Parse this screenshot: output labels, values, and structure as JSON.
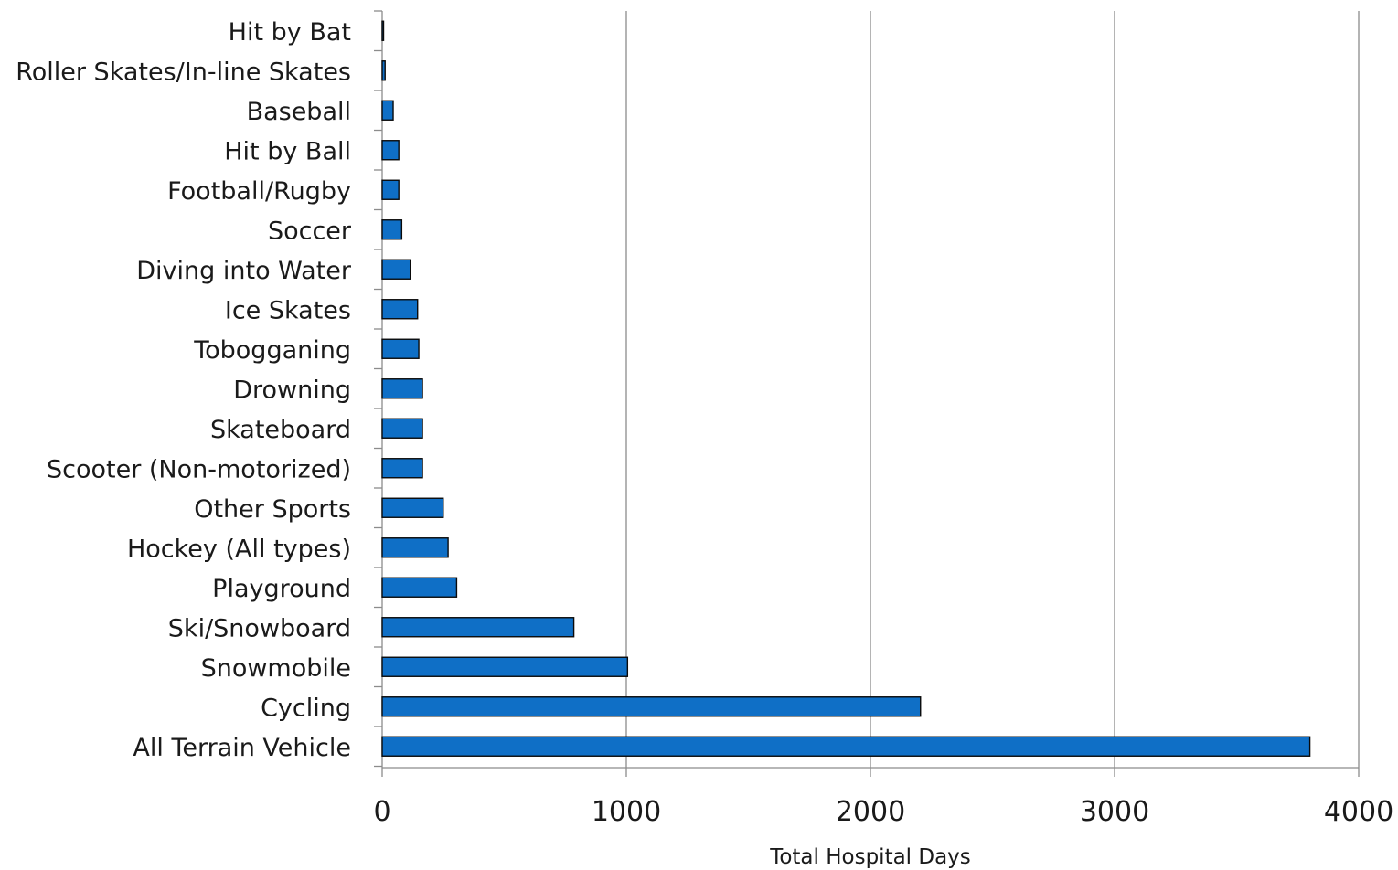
{
  "chart_data": {
    "type": "bar",
    "orientation": "horizontal",
    "categories": [
      "Hit by Bat",
      "Roller Skates/In-line Skates",
      "Baseball",
      "Hit by Ball",
      "Football/Rugby",
      "Soccer",
      "Diving into Water",
      "Ice Skates",
      "Tobogganing",
      "Drowning",
      "Skateboard",
      "Scooter (Non-motorized)",
      "Other Sports",
      "Hockey (All types)",
      "Playground",
      "Ski/Snowboard",
      "Snowmobile",
      "Cycling",
      "All Terrain Vehicle"
    ],
    "values": [
      5,
      12,
      45,
      68,
      68,
      80,
      115,
      145,
      150,
      165,
      165,
      165,
      250,
      270,
      305,
      785,
      1005,
      2205,
      3800
    ],
    "xlabel": "Total Hospital Days",
    "ylabel": "",
    "xlim": [
      0,
      4000
    ],
    "xticks": [
      "0",
      "1000",
      "2000",
      "3000",
      "4000"
    ],
    "grid": "vertical",
    "legend": "none",
    "bar_color": "#0f6fc6",
    "bar_edge_color": "#0a0a0a",
    "gridline_color": "#8c8c8c",
    "axis_color": "#8c8c8c"
  }
}
